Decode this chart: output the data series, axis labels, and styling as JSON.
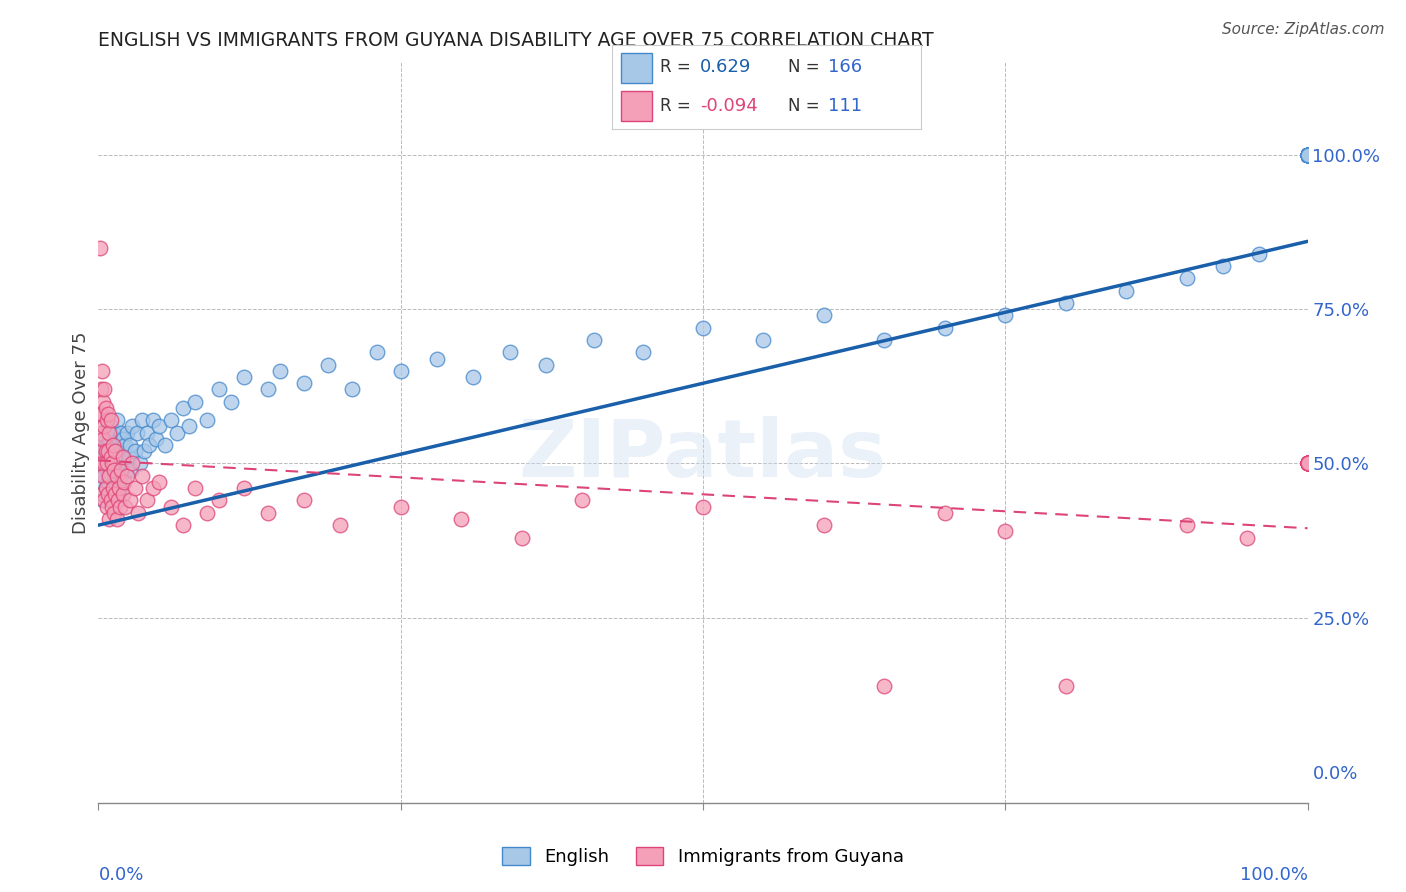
{
  "title": "ENGLISH VS IMMIGRANTS FROM GUYANA DISABILITY AGE OVER 75 CORRELATION CHART",
  "source": "Source: ZipAtlas.com",
  "ylabel": "Disability Age Over 75",
  "right_yticklabels": [
    "0.0%",
    "25.0%",
    "50.0%",
    "75.0%",
    "100.0%"
  ],
  "right_ytick_vals": [
    0.0,
    0.25,
    0.5,
    0.75,
    1.0
  ],
  "legend_english_R": "0.629",
  "legend_english_N": "166",
  "legend_guyana_R": "-0.094",
  "legend_guyana_N": "111",
  "watermark": "ZIPatlas",
  "english_color": "#a8c8e8",
  "english_edge_color": "#4488cc",
  "guyana_color": "#f4a0b8",
  "guyana_edge_color": "#dd4477",
  "title_color": "#222222",
  "source_color": "#555555",
  "blue_line_color": "#1a5faa",
  "pink_line_color": "#dd4477",
  "axis_label_color": "#3366cc",
  "xlim": [
    0.0,
    1.0
  ],
  "ylim": [
    -0.05,
    1.15
  ],
  "grid_color": "#bbbbbb",
  "english_x": [
    0.002,
    0.003,
    0.003,
    0.004,
    0.004,
    0.005,
    0.005,
    0.005,
    0.006,
    0.006,
    0.007,
    0.007,
    0.008,
    0.008,
    0.009,
    0.009,
    0.009,
    0.01,
    0.01,
    0.01,
    0.01,
    0.011,
    0.011,
    0.012,
    0.012,
    0.013,
    0.013,
    0.014,
    0.014,
    0.015,
    0.015,
    0.015,
    0.016,
    0.016,
    0.017,
    0.017,
    0.018,
    0.018,
    0.019,
    0.019,
    0.02,
    0.02,
    0.021,
    0.022,
    0.023,
    0.024,
    0.025,
    0.026,
    0.027,
    0.028,
    0.03,
    0.032,
    0.034,
    0.036,
    0.038,
    0.04,
    0.042,
    0.045,
    0.048,
    0.05,
    0.055,
    0.06,
    0.065,
    0.07,
    0.075,
    0.08,
    0.09,
    0.1,
    0.11,
    0.12,
    0.14,
    0.15,
    0.17,
    0.19,
    0.21,
    0.23,
    0.25,
    0.28,
    0.31,
    0.34,
    0.37,
    0.41,
    0.45,
    0.5,
    0.55,
    0.6,
    0.65,
    0.7,
    0.75,
    0.8,
    0.85,
    0.9,
    0.93,
    0.96,
    1.0,
    1.0,
    1.0,
    1.0,
    1.0,
    1.0,
    1.0,
    1.0,
    1.0,
    1.0,
    1.0,
    1.0,
    1.0,
    1.0,
    1.0,
    1.0,
    1.0,
    1.0,
    1.0,
    1.0,
    1.0,
    1.0,
    1.0,
    1.0,
    1.0,
    1.0,
    1.0,
    1.0,
    1.0,
    1.0,
    1.0,
    1.0,
    1.0,
    1.0,
    1.0,
    1.0,
    1.0,
    1.0,
    1.0,
    1.0,
    1.0,
    1.0,
    1.0,
    1.0,
    1.0,
    1.0,
    1.0,
    1.0,
    1.0,
    1.0,
    1.0,
    1.0,
    1.0,
    1.0,
    1.0,
    1.0,
    1.0,
    1.0,
    1.0,
    1.0,
    1.0,
    1.0,
    1.0,
    1.0,
    1.0,
    1.0,
    1.0,
    1.0,
    1.0,
    1.0
  ],
  "english_y": [
    0.5,
    0.47,
    0.53,
    0.44,
    0.52,
    0.48,
    0.51,
    0.55,
    0.46,
    0.54,
    0.49,
    0.53,
    0.47,
    0.56,
    0.45,
    0.5,
    0.54,
    0.48,
    0.52,
    0.56,
    0.44,
    0.51,
    0.55,
    0.47,
    0.53,
    0.49,
    0.55,
    0.46,
    0.52,
    0.48,
    0.53,
    0.57,
    0.45,
    0.51,
    0.49,
    0.54,
    0.46,
    0.52,
    0.48,
    0.55,
    0.5,
    0.54,
    0.51,
    0.53,
    0.49,
    0.55,
    0.51,
    0.53,
    0.49,
    0.56,
    0.52,
    0.55,
    0.5,
    0.57,
    0.52,
    0.55,
    0.53,
    0.57,
    0.54,
    0.56,
    0.53,
    0.57,
    0.55,
    0.59,
    0.56,
    0.6,
    0.57,
    0.62,
    0.6,
    0.64,
    0.62,
    0.65,
    0.63,
    0.66,
    0.62,
    0.68,
    0.65,
    0.67,
    0.64,
    0.68,
    0.66,
    0.7,
    0.68,
    0.72,
    0.7,
    0.74,
    0.7,
    0.72,
    0.74,
    0.76,
    0.78,
    0.8,
    0.82,
    0.84,
    1.0,
    1.0,
    1.0,
    1.0,
    1.0,
    1.0,
    1.0,
    1.0,
    1.0,
    1.0,
    1.0,
    1.0,
    1.0,
    1.0,
    1.0,
    1.0,
    1.0,
    1.0,
    1.0,
    1.0,
    1.0,
    1.0,
    1.0,
    1.0,
    1.0,
    1.0,
    1.0,
    1.0,
    1.0,
    1.0,
    1.0,
    1.0,
    1.0,
    1.0,
    1.0,
    1.0,
    1.0,
    1.0,
    1.0,
    1.0,
    1.0,
    1.0,
    1.0,
    1.0,
    1.0,
    1.0,
    1.0,
    1.0,
    1.0,
    1.0,
    1.0,
    1.0,
    1.0,
    1.0,
    1.0,
    1.0,
    1.0,
    1.0,
    1.0,
    1.0,
    1.0,
    1.0,
    1.0,
    1.0,
    1.0,
    1.0,
    1.0,
    1.0,
    1.0,
    1.0
  ],
  "guyana_x": [
    0.001,
    0.001,
    0.002,
    0.002,
    0.002,
    0.003,
    0.003,
    0.003,
    0.003,
    0.004,
    0.004,
    0.004,
    0.005,
    0.005,
    0.005,
    0.005,
    0.006,
    0.006,
    0.006,
    0.007,
    0.007,
    0.007,
    0.008,
    0.008,
    0.008,
    0.009,
    0.009,
    0.009,
    0.01,
    0.01,
    0.01,
    0.011,
    0.011,
    0.012,
    0.012,
    0.013,
    0.013,
    0.014,
    0.014,
    0.015,
    0.015,
    0.016,
    0.017,
    0.018,
    0.019,
    0.02,
    0.02,
    0.021,
    0.022,
    0.024,
    0.026,
    0.028,
    0.03,
    0.033,
    0.036,
    0.04,
    0.045,
    0.05,
    0.06,
    0.07,
    0.08,
    0.09,
    0.1,
    0.12,
    0.14,
    0.17,
    0.2,
    0.25,
    0.3,
    0.35,
    0.4,
    0.5,
    0.6,
    0.65,
    0.7,
    0.75,
    0.8,
    0.9,
    0.95,
    1.0,
    1.0,
    1.0,
    1.0,
    1.0,
    1.0,
    1.0,
    1.0,
    1.0,
    1.0,
    1.0,
    1.0,
    1.0,
    1.0,
    1.0,
    1.0,
    1.0,
    1.0,
    1.0,
    1.0,
    1.0,
    1.0,
    1.0,
    1.0,
    1.0,
    1.0,
    1.0,
    1.0,
    1.0,
    1.0,
    1.0,
    1.0
  ],
  "guyana_y": [
    0.55,
    0.85,
    0.5,
    0.58,
    0.62,
    0.45,
    0.52,
    0.58,
    0.65,
    0.48,
    0.54,
    0.6,
    0.44,
    0.5,
    0.56,
    0.62,
    0.46,
    0.52,
    0.59,
    0.43,
    0.5,
    0.57,
    0.45,
    0.52,
    0.58,
    0.41,
    0.48,
    0.55,
    0.44,
    0.51,
    0.57,
    0.43,
    0.5,
    0.46,
    0.53,
    0.42,
    0.49,
    0.45,
    0.52,
    0.41,
    0.48,
    0.44,
    0.46,
    0.43,
    0.49,
    0.45,
    0.51,
    0.47,
    0.43,
    0.48,
    0.44,
    0.5,
    0.46,
    0.42,
    0.48,
    0.44,
    0.46,
    0.47,
    0.43,
    0.4,
    0.46,
    0.42,
    0.44,
    0.46,
    0.42,
    0.44,
    0.4,
    0.43,
    0.41,
    0.38,
    0.44,
    0.43,
    0.4,
    0.14,
    0.42,
    0.39,
    0.14,
    0.4,
    0.38,
    0.5,
    0.5,
    0.5,
    0.5,
    0.5,
    0.5,
    0.5,
    0.5,
    0.5,
    0.5,
    0.5,
    0.5,
    0.5,
    0.5,
    0.5,
    0.5,
    0.5,
    0.5,
    0.5,
    0.5,
    0.5,
    0.5,
    0.5,
    0.5,
    0.5,
    0.5,
    0.5,
    0.5,
    0.5,
    0.5,
    0.5,
    0.5
  ],
  "blue_line_x0": 0.0,
  "blue_line_y0": 0.4,
  "blue_line_x1": 1.0,
  "blue_line_y1": 0.86,
  "pink_line_x0": 0.0,
  "pink_line_y0": 0.505,
  "pink_line_x1": 1.0,
  "pink_line_y1": 0.395
}
